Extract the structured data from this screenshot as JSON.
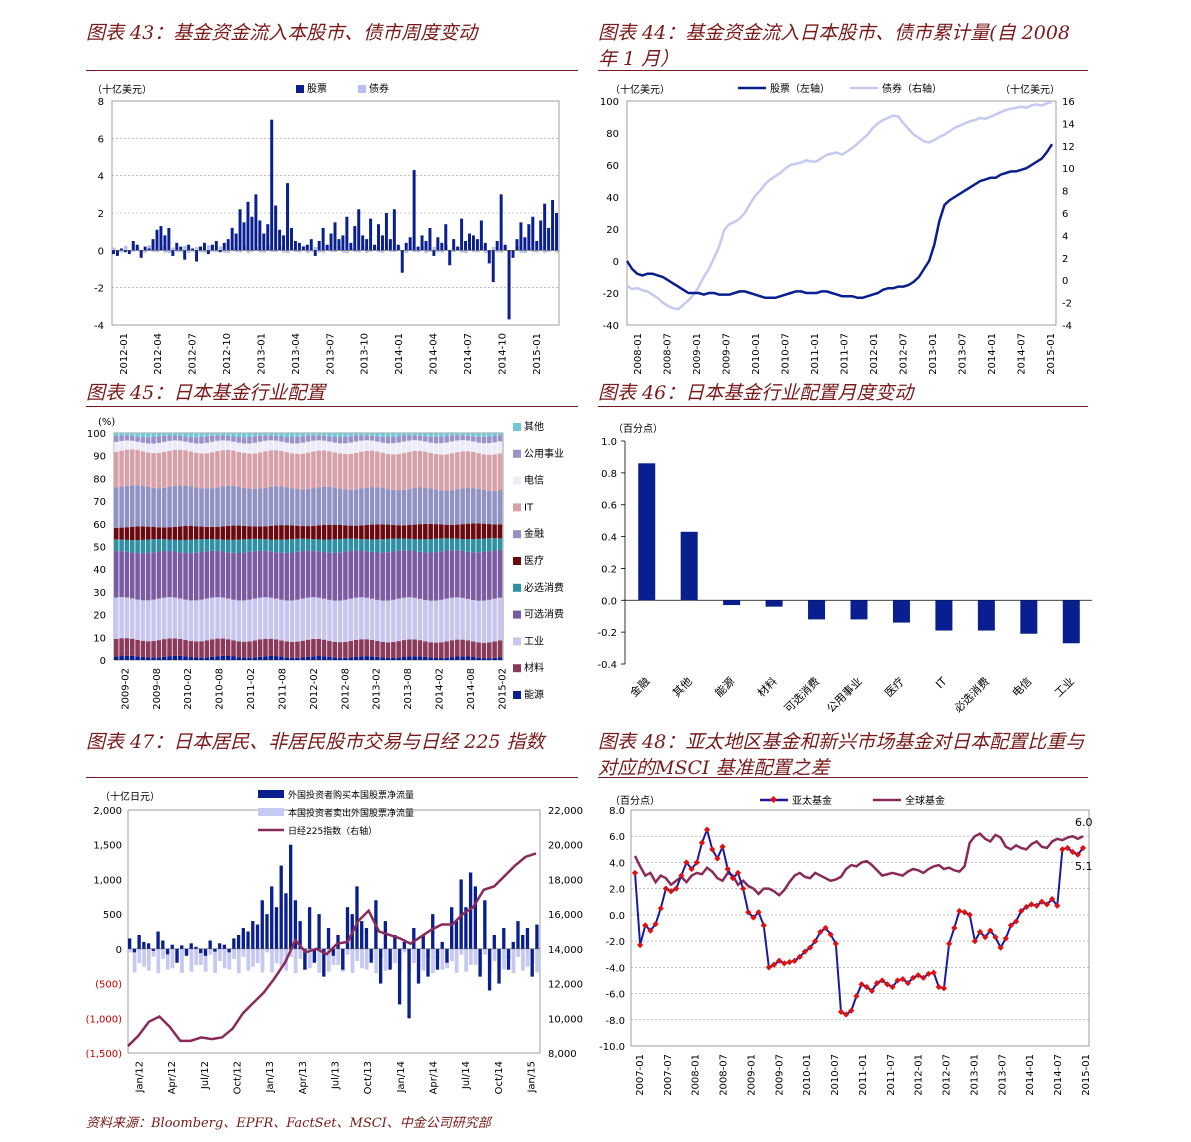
{
  "source": "资料来源：Bloomberg、EPFR、FactSet、MSCI、中金公司研究部",
  "charts": {
    "c43": {
      "title": "图表 43：基金资金流入本股市、债市周度变动",
      "unit": "（十亿美元）",
      "chart_data": {
        "type": "bar",
        "series": [
          {
            "name": "股票",
            "color": "#0a1f8f"
          },
          {
            "name": "债券",
            "color": "#b8bef2"
          }
        ],
        "ylim": [
          -4,
          8
        ],
        "yticks": [
          "-4",
          "-2",
          "0",
          "2",
          "4",
          "6",
          "8"
        ],
        "xticks": [
          "2012-01",
          "2012-04",
          "2012-07",
          "2012-10",
          "2013-01",
          "2013-04",
          "2013-07",
          "2013-10",
          "2014-01",
          "2014-04",
          "2014-07",
          "2014-10",
          "2015-01"
        ],
        "equity_weekly": [
          -0.2,
          -0.3,
          0.1,
          -0.1,
          -0.2,
          0.5,
          0.3,
          -0.4,
          0.2,
          0.1,
          0.6,
          1.1,
          1.3,
          0.8,
          1.2,
          -0.3,
          0.4,
          0.2,
          -0.5,
          0.3,
          0.1,
          -0.6,
          0.2,
          0.4,
          -0.2,
          0.3,
          0.5,
          -0.1,
          0.4,
          0.6,
          1.2,
          0.9,
          2.2,
          1.5,
          2.6,
          1.8,
          3.0,
          1.6,
          0.9,
          1.4,
          7.0,
          2.4,
          1.1,
          0.8,
          3.6,
          1.2,
          0.5,
          0.4,
          0.2,
          0.3,
          0.6,
          -0.3,
          0.5,
          1.2,
          0.3,
          0.9,
          1.5,
          0.6,
          0.8,
          1.8,
          0.4,
          1.3,
          2.2,
          0.8,
          0.6,
          1.7,
          0.3,
          1.4,
          0.8,
          2.0,
          0.6,
          2.2,
          0.3,
          -1.2,
          0.4,
          0.7,
          4.3,
          0.2,
          0.8,
          0.5,
          1.2,
          -0.3,
          0.7,
          0.4,
          1.4,
          -0.8,
          0.6,
          0.2,
          1.7,
          0.5,
          0.9,
          0.8,
          0.6,
          1.6,
          0.4,
          -0.7,
          -1.7,
          0.5,
          3.0,
          0.3,
          -3.7,
          -0.4,
          0.6,
          1.5,
          0.7,
          1.4,
          1.8,
          0.5,
          1.6,
          2.5,
          1.2,
          2.7,
          2.0
        ],
        "bond_note": "债券 small positive/negative weekly flows around zero"
      }
    },
    "c44": {
      "title": "图表 44：基金资金流入日本股市、债市累计量(自 2008 年 1 月）",
      "unit_left": "（十亿美元）",
      "unit_right": "（十亿美元）",
      "chart_data": {
        "type": "line",
        "series": [
          {
            "name": "股票（左轴）",
            "color": "#0a1f8f",
            "axis": "left"
          },
          {
            "name": "债券（右轴）",
            "color": "#c6caf3",
            "axis": "right"
          }
        ],
        "ylim_left": [
          -40,
          100
        ],
        "ylim_right": [
          -4,
          16
        ],
        "yticks_left": [
          "-40",
          "-20",
          "0",
          "20",
          "40",
          "60",
          "80",
          "100"
        ],
        "yticks_right": [
          "-4",
          "-2",
          "0",
          "2",
          "4",
          "6",
          "8",
          "10",
          "12",
          "14",
          "16"
        ],
        "xticks": [
          "2008-01",
          "2008-07",
          "2009-01",
          "2009-07",
          "2010-01",
          "2010-07",
          "2011-01",
          "2011-07",
          "2012-01",
          "2012-07",
          "2013-01",
          "2013-07",
          "2014-01",
          "2014-07",
          "2015-01"
        ],
        "equity_monthly": [
          0,
          -5,
          -8,
          -9,
          -8,
          -8,
          -9,
          -10,
          -12,
          -14,
          -16,
          -18,
          -20,
          -20,
          -20,
          -21,
          -20,
          -20,
          -21,
          -21,
          -21,
          -20,
          -19,
          -19,
          -20,
          -21,
          -22,
          -23,
          -23,
          -23,
          -22,
          -21,
          -20,
          -19,
          -19,
          -20,
          -20,
          -20,
          -19,
          -19,
          -20,
          -21,
          -22,
          -22,
          -22,
          -23,
          -23,
          -22,
          -21,
          -20,
          -18,
          -17,
          -17,
          -16,
          -16,
          -15,
          -13,
          -10,
          -5,
          0,
          10,
          25,
          35,
          38,
          40,
          42,
          44,
          46,
          48,
          50,
          51,
          52,
          52,
          54,
          55,
          56,
          56,
          57,
          58,
          60,
          62,
          64,
          68,
          73
        ],
        "bond_monthly": [
          -0.5,
          -0.8,
          -0.7,
          -0.9,
          -1.0,
          -1.3,
          -1.6,
          -2.0,
          -2.3,
          -2.5,
          -2.6,
          -2.2,
          -1.8,
          -1.3,
          -0.6,
          0.3,
          1.0,
          2.0,
          3.0,
          4.5,
          5.0,
          5.2,
          5.5,
          6.0,
          6.8,
          7.5,
          8.0,
          8.6,
          9.0,
          9.3,
          9.6,
          10.0,
          10.3,
          10.4,
          10.5,
          10.7,
          10.6,
          10.6,
          10.9,
          11.2,
          11.3,
          11.4,
          11.2,
          11.5,
          11.8,
          12.2,
          12.6,
          13.0,
          13.6,
          14.0,
          14.3,
          14.5,
          14.7,
          14.6,
          14.0,
          13.5,
          13.0,
          12.7,
          12.4,
          12.3,
          12.5,
          12.8,
          13.0,
          13.3,
          13.6,
          13.8,
          14.0,
          14.2,
          14.3,
          14.5,
          14.4,
          14.6,
          14.8,
          15.0,
          15.2,
          15.3,
          15.4,
          15.5,
          15.4,
          15.6,
          15.7,
          15.6,
          15.8,
          15.9
        ]
      }
    },
    "c45": {
      "title": "图表 45：日本基金行业配置",
      "unit": "(%)",
      "chart_data": {
        "type": "bar",
        "stacked": true,
        "ylim": [
          0,
          100
        ],
        "yticks": [
          "0",
          "10",
          "20",
          "30",
          "40",
          "50",
          "60",
          "70",
          "80",
          "90",
          "100"
        ],
        "xticks": [
          "2009-02",
          "2009-08",
          "2010-02",
          "2010-08",
          "2011-02",
          "2011-08",
          "2012-02",
          "2012-08",
          "2013-02",
          "2013-08",
          "2014-02",
          "2014-08",
          "2015-02"
        ],
        "series": [
          {
            "name": "能源",
            "color": "#0a1f8f",
            "first": 1.5,
            "last": 1.2
          },
          {
            "name": "材料",
            "color": "#8a3a5a",
            "first": 7.5,
            "last": 7.0
          },
          {
            "name": "工业",
            "color": "#c8c6ee",
            "first": 18.0,
            "last": 18.5
          },
          {
            "name": "可选消费",
            "color": "#7a5aa0",
            "first": 20.5,
            "last": 21.0
          },
          {
            "name": "必选消费",
            "color": "#2f8fa3",
            "first": 5.5,
            "last": 5.5
          },
          {
            "name": "医疗",
            "color": "#6a0a10",
            "first": 5.5,
            "last": 6.5
          },
          {
            "name": "金融",
            "color": "#8f92c2",
            "first": 18.0,
            "last": 15.0
          },
          {
            "name": "IT",
            "color": "#d8a0a8",
            "first": 15.5,
            "last": 16.0
          },
          {
            "name": "电信",
            "color": "#ebebfa",
            "first": 4.0,
            "last": 5.0
          },
          {
            "name": "公用事业",
            "color": "#9a92c6",
            "first": 2.5,
            "last": 2.5
          },
          {
            "name": "其他",
            "color": "#76c7d6",
            "first": 1.5,
            "last": 1.3
          }
        ]
      }
    },
    "c46": {
      "title": "图表 46：日本基金行业配置月度变动",
      "unit": "（百分点）",
      "chart_data": {
        "type": "bar",
        "categories": [
          "金融",
          "其他",
          "能源",
          "材料",
          "可选消费",
          "公用事业",
          "医疗",
          "IT",
          "必选消费",
          "电信",
          "工业"
        ],
        "values": [
          0.86,
          0.43,
          -0.03,
          -0.04,
          -0.12,
          -0.12,
          -0.14,
          -0.19,
          -0.19,
          -0.21,
          -0.27
        ],
        "color": "#0a1f8f",
        "ylim": [
          -0.4,
          1.0
        ],
        "yticks": [
          "-0.4",
          "-0.2",
          "0.0",
          "0.2",
          "0.4",
          "0.6",
          "0.8",
          "1.0"
        ]
      }
    },
    "c47": {
      "title": "图表 47：日本居民、非居民股市交易与日经 225 指数",
      "unit": "（十亿日元）",
      "chart_data": {
        "type": "bar",
        "series": [
          {
            "name": "外国投资者购买本国股票净流量",
            "color": "#0a1f8f"
          },
          {
            "name": "本国投资者卖出外国股票净流量",
            "color": "#c6caf3"
          },
          {
            "name": "日经225指数（右轴）",
            "color": "#8a2a5a"
          }
        ],
        "ylim_left": [
          -1500,
          2000
        ],
        "ylim_right": [
          8000,
          22000
        ],
        "yticks_left": [
          "(1,500)",
          "(1,000)",
          "(500)",
          "0",
          "500",
          "1,000",
          "1,500",
          "2,000"
        ],
        "yticks_right": [
          "8,000",
          "10,000",
          "12,000",
          "14,000",
          "16,000",
          "18,000",
          "20,000",
          "22,000"
        ],
        "xticks": [
          "Jan/12",
          "Apr/12",
          "Jul/12",
          "Oct/12",
          "Jan/13",
          "Apr/13",
          "Jul/13",
          "Oct/13",
          "Jan/14",
          "Apr/14",
          "Jul/14",
          "Oct/14",
          "Jan/15"
        ],
        "nikkei_monthly": [
          8400,
          9000,
          9800,
          10100,
          9500,
          8700,
          8700,
          8900,
          8800,
          8900,
          9400,
          10300,
          10900,
          11500,
          12300,
          13200,
          14500,
          13800,
          14000,
          13700,
          14300,
          14400,
          15600,
          16200,
          15000,
          14800,
          14600,
          14300,
          14700,
          15100,
          15400,
          15400,
          16000,
          16400,
          17400,
          17600,
          18200,
          18800,
          19300,
          19500
        ],
        "foreign_weekly": [
          150,
          -50,
          200,
          100,
          80,
          -30,
          250,
          120,
          -80,
          60,
          -200,
          50,
          -100,
          80,
          30,
          -60,
          -100,
          120,
          -40,
          80,
          60,
          -50,
          150,
          200,
          300,
          250,
          400,
          350,
          700,
          500,
          900,
          600,
          1200,
          800,
          1500,
          700,
          400,
          -300,
          600,
          -200,
          500,
          -400,
          300,
          -100,
          200,
          -300,
          600,
          500,
          900,
          400,
          300,
          -200,
          700,
          -500,
          400,
          -300,
          200,
          -800,
          100,
          -1000,
          300,
          -500,
          200,
          -400,
          500,
          -300,
          100,
          -200,
          600,
          400,
          1000,
          600,
          1100,
          900,
          -400,
          700,
          -600,
          200,
          -500,
          300,
          -300,
          100,
          400,
          200,
          300,
          -400,
          350
        ]
      }
    },
    "c48": {
      "title": "图表 48：亚太地区基金和新兴市场基金对日本配置比重与对应的MSCI 基准配置之差",
      "unit": "（百分点）",
      "chart_data": {
        "type": "line",
        "series": [
          {
            "name": "亚太基金",
            "color": "#1a1aa0",
            "marker_color": "#e01010",
            "end_label": "5.1"
          },
          {
            "name": "全球基金",
            "color": "#8a2a5a",
            "end_label": "6.0"
          }
        ],
        "ylim": [
          -10,
          8
        ],
        "yticks": [
          "-10.0",
          "-8.0",
          "-6.0",
          "-4.0",
          "-2.0",
          "0.0",
          "2.0",
          "4.0",
          "6.0",
          "8.0"
        ],
        "xticks": [
          "2007-01",
          "2007-07",
          "2008-01",
          "2008-07",
          "2009-01",
          "2009-07",
          "2010-01",
          "2010-07",
          "2011-01",
          "2011-07",
          "2012-01",
          "2012-07",
          "2013-01",
          "2013-07",
          "2014-01",
          "2014-07",
          "2015-01"
        ],
        "apac_monthly": [
          3.2,
          -2.3,
          -0.8,
          -1.2,
          -0.7,
          0.5,
          2.0,
          1.8,
          2.0,
          3.0,
          4.0,
          3.5,
          4.0,
          5.5,
          6.5,
          5.0,
          4.3,
          5.2,
          3.5,
          2.8,
          3.2,
          2.0,
          0.2,
          -0.2,
          0.2,
          -0.8,
          -4.0,
          -3.8,
          -3.5,
          -3.7,
          -3.6,
          -3.5,
          -3.2,
          -2.8,
          -2.5,
          -2.0,
          -1.3,
          -1.0,
          -1.5,
          -2.2,
          -7.4,
          -7.6,
          -7.3,
          -6.2,
          -5.3,
          -5.5,
          -5.8,
          -5.2,
          -5.0,
          -5.3,
          -5.5,
          -5.0,
          -4.9,
          -5.2,
          -4.8,
          -4.6,
          -4.8,
          -4.5,
          -4.4,
          -5.5,
          -5.6,
          -2.2,
          -1.0,
          0.3,
          0.2,
          0.0,
          -2.0,
          -1.3,
          -1.7,
          -1.2,
          -1.7,
          -2.5,
          -1.8,
          -0.8,
          -0.5,
          0.3,
          0.6,
          0.8,
          0.7,
          1.0,
          0.8,
          1.2,
          0.7,
          5.0,
          5.1,
          4.8,
          4.6,
          5.1
        ],
        "global_monthly": [
          4.5,
          3.7,
          3.0,
          3.2,
          2.5,
          3.0,
          2.8,
          2.3,
          2.6,
          2.9,
          2.5,
          3.0,
          3.2,
          3.1,
          3.6,
          3.3,
          2.8,
          2.6,
          3.2,
          3.0,
          2.3,
          2.6,
          2.2,
          2.0,
          1.6,
          2.0,
          2.0,
          1.8,
          1.5,
          1.9,
          2.5,
          3.0,
          3.2,
          2.9,
          2.8,
          3.2,
          3.0,
          2.8,
          2.6,
          2.7,
          2.9,
          3.5,
          3.8,
          3.7,
          4.0,
          4.1,
          3.8,
          3.4,
          3.0,
          3.1,
          3.2,
          3.1,
          3.0,
          3.3,
          3.5,
          3.4,
          3.2,
          3.5,
          3.7,
          3.8,
          3.5,
          3.6,
          3.4,
          3.3,
          3.7,
          5.5,
          6.0,
          6.2,
          5.8,
          5.6,
          6.1,
          5.9,
          5.2,
          5.0,
          5.3,
          5.1,
          5.0,
          5.4,
          5.6,
          5.2,
          5.1,
          5.6,
          5.8,
          5.7,
          5.9,
          6.0,
          5.8,
          6.0
        ]
      }
    }
  }
}
